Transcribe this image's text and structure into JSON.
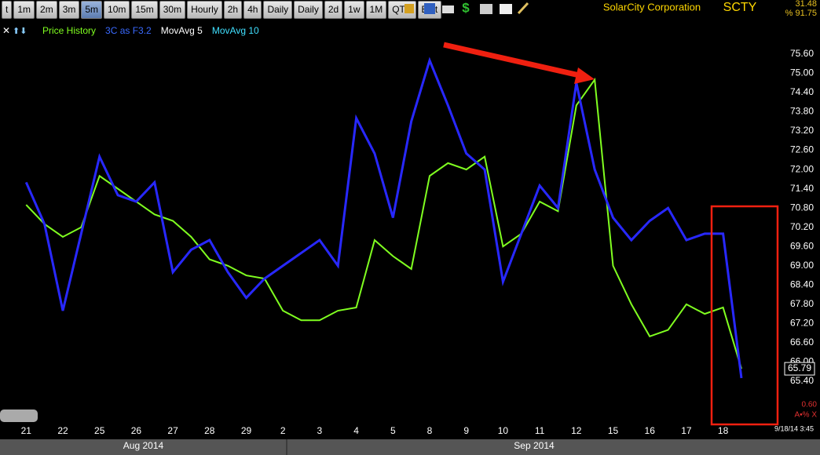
{
  "toolbar": {
    "buttons": [
      "t",
      "1m",
      "2m",
      "3m",
      "5m",
      "10m",
      "15m",
      "30m",
      "Hourly",
      "2h",
      "4h",
      "Daily",
      "Daily",
      "2d",
      "1w",
      "1M",
      "QTR",
      "Edit"
    ],
    "active": "5m"
  },
  "header": {
    "company": "SolarCity Corporation",
    "symbol": "SCTY",
    "quote_top": "31.48",
    "quote_bottom": "% 91.75"
  },
  "footer": {
    "small_value": "0.60",
    "timestamp": "9/18/14 3:45",
    "months": [
      "Aug 2014",
      "Sep 2014"
    ]
  },
  "chart_data": {
    "type": "line",
    "legend_extra": [
      {
        "name": "MovAvg 5",
        "color": "#ffffff"
      },
      {
        "name": "MovAvg 10",
        "color": "#40e0ff"
      }
    ],
    "categories": [
      "21",
      null,
      "22",
      null,
      "25",
      null,
      "26",
      null,
      "27",
      null,
      "28",
      null,
      "29",
      null,
      "2",
      null,
      "3",
      null,
      "4",
      null,
      "5",
      null,
      "8",
      null,
      "9",
      null,
      "10",
      null,
      "11",
      null,
      "12",
      null,
      "15",
      null,
      "16",
      null,
      "17",
      null,
      "18",
      null
    ],
    "series": [
      {
        "name": "Price History",
        "color": "#80ff20",
        "values": [
          70.9,
          70.3,
          69.9,
          70.2,
          71.8,
          71.4,
          71.0,
          70.6,
          70.4,
          69.9,
          69.2,
          69.0,
          68.7,
          68.6,
          67.6,
          67.3,
          67.3,
          67.6,
          67.7,
          69.8,
          69.3,
          68.9,
          71.8,
          72.2,
          72.0,
          72.4,
          69.6,
          70.0,
          71.0,
          70.7,
          74.0,
          74.8,
          69.0,
          67.8,
          66.8,
          67.0,
          67.8,
          67.5,
          67.7,
          65.79
        ]
      },
      {
        "name": "3C as F3.2",
        "color": "#2828ff",
        "values": [
          71.6,
          70.3,
          67.6,
          70.0,
          72.4,
          71.2,
          71.0,
          71.6,
          68.8,
          69.5,
          69.8,
          68.8,
          68.0,
          68.6,
          69.0,
          69.4,
          69.8,
          69.0,
          73.6,
          72.5,
          70.5,
          73.5,
          75.4,
          74.0,
          72.5,
          72.0,
          68.5,
          70.0,
          71.5,
          70.8,
          74.7,
          72.0,
          70.5,
          69.8,
          70.4,
          70.8,
          69.8,
          70.0,
          70.0,
          65.5
        ]
      }
    ],
    "last_price": 65.79,
    "ylim": [
      64.08,
      76.55
    ],
    "yticks": [
      {
        "value": 65.4,
        "label": "65.40"
      },
      {
        "value": 66.0,
        "label": "66.00"
      },
      {
        "value": 66.6,
        "label": "66.60"
      },
      {
        "value": 67.2,
        "label": "67.20"
      },
      {
        "value": 67.8,
        "label": "67.80"
      },
      {
        "value": 68.4,
        "label": "68.40"
      },
      {
        "value": 69.0,
        "label": "69.00"
      },
      {
        "value": 69.6,
        "label": "69.60"
      },
      {
        "value": 70.2,
        "label": "70.20"
      },
      {
        "value": 70.8,
        "label": "70.80"
      },
      {
        "value": 71.4,
        "label": "71.40"
      },
      {
        "value": 72.0,
        "label": "72.00"
      },
      {
        "value": 72.6,
        "label": "72.60"
      },
      {
        "value": 73.2,
        "label": "73.20"
      },
      {
        "value": 73.8,
        "label": "73.80"
      },
      {
        "value": 74.4,
        "label": "74.40"
      },
      {
        "value": 75.0,
        "label": "75.00"
      },
      {
        "value": 75.6,
        "label": "75.60"
      }
    ],
    "grid": false
  }
}
